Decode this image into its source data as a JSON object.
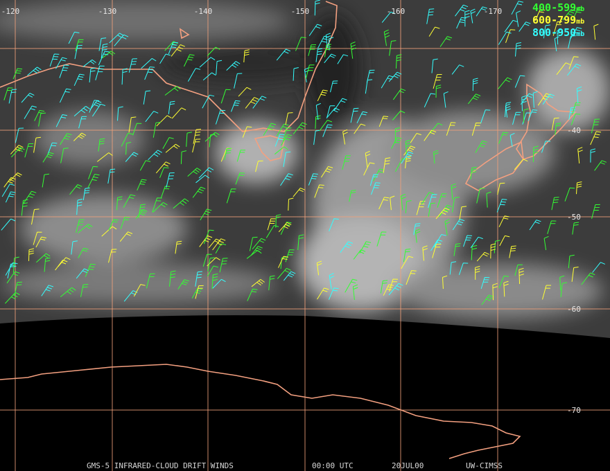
{
  "map": {
    "longitude_labels": [
      "-120",
      "-130",
      "-140",
      "-150",
      "-160",
      "-170"
    ],
    "latitude_labels": [
      "-40",
      "-50",
      "-60",
      "-70"
    ],
    "legend": [
      {
        "range": "400-599",
        "unit": "mb",
        "color": "#33ff33"
      },
      {
        "range": "600-799",
        "unit": "mb",
        "color": "#ffff33"
      },
      {
        "range": "800-950",
        "unit": "mb",
        "color": "#33ffff"
      }
    ],
    "footer": [
      "GMS-5 INFRARED-CLOUD DRIFT WINDS",
      "00:00 UTC",
      "20JUL00",
      "UW-CIMSS"
    ]
  }
}
